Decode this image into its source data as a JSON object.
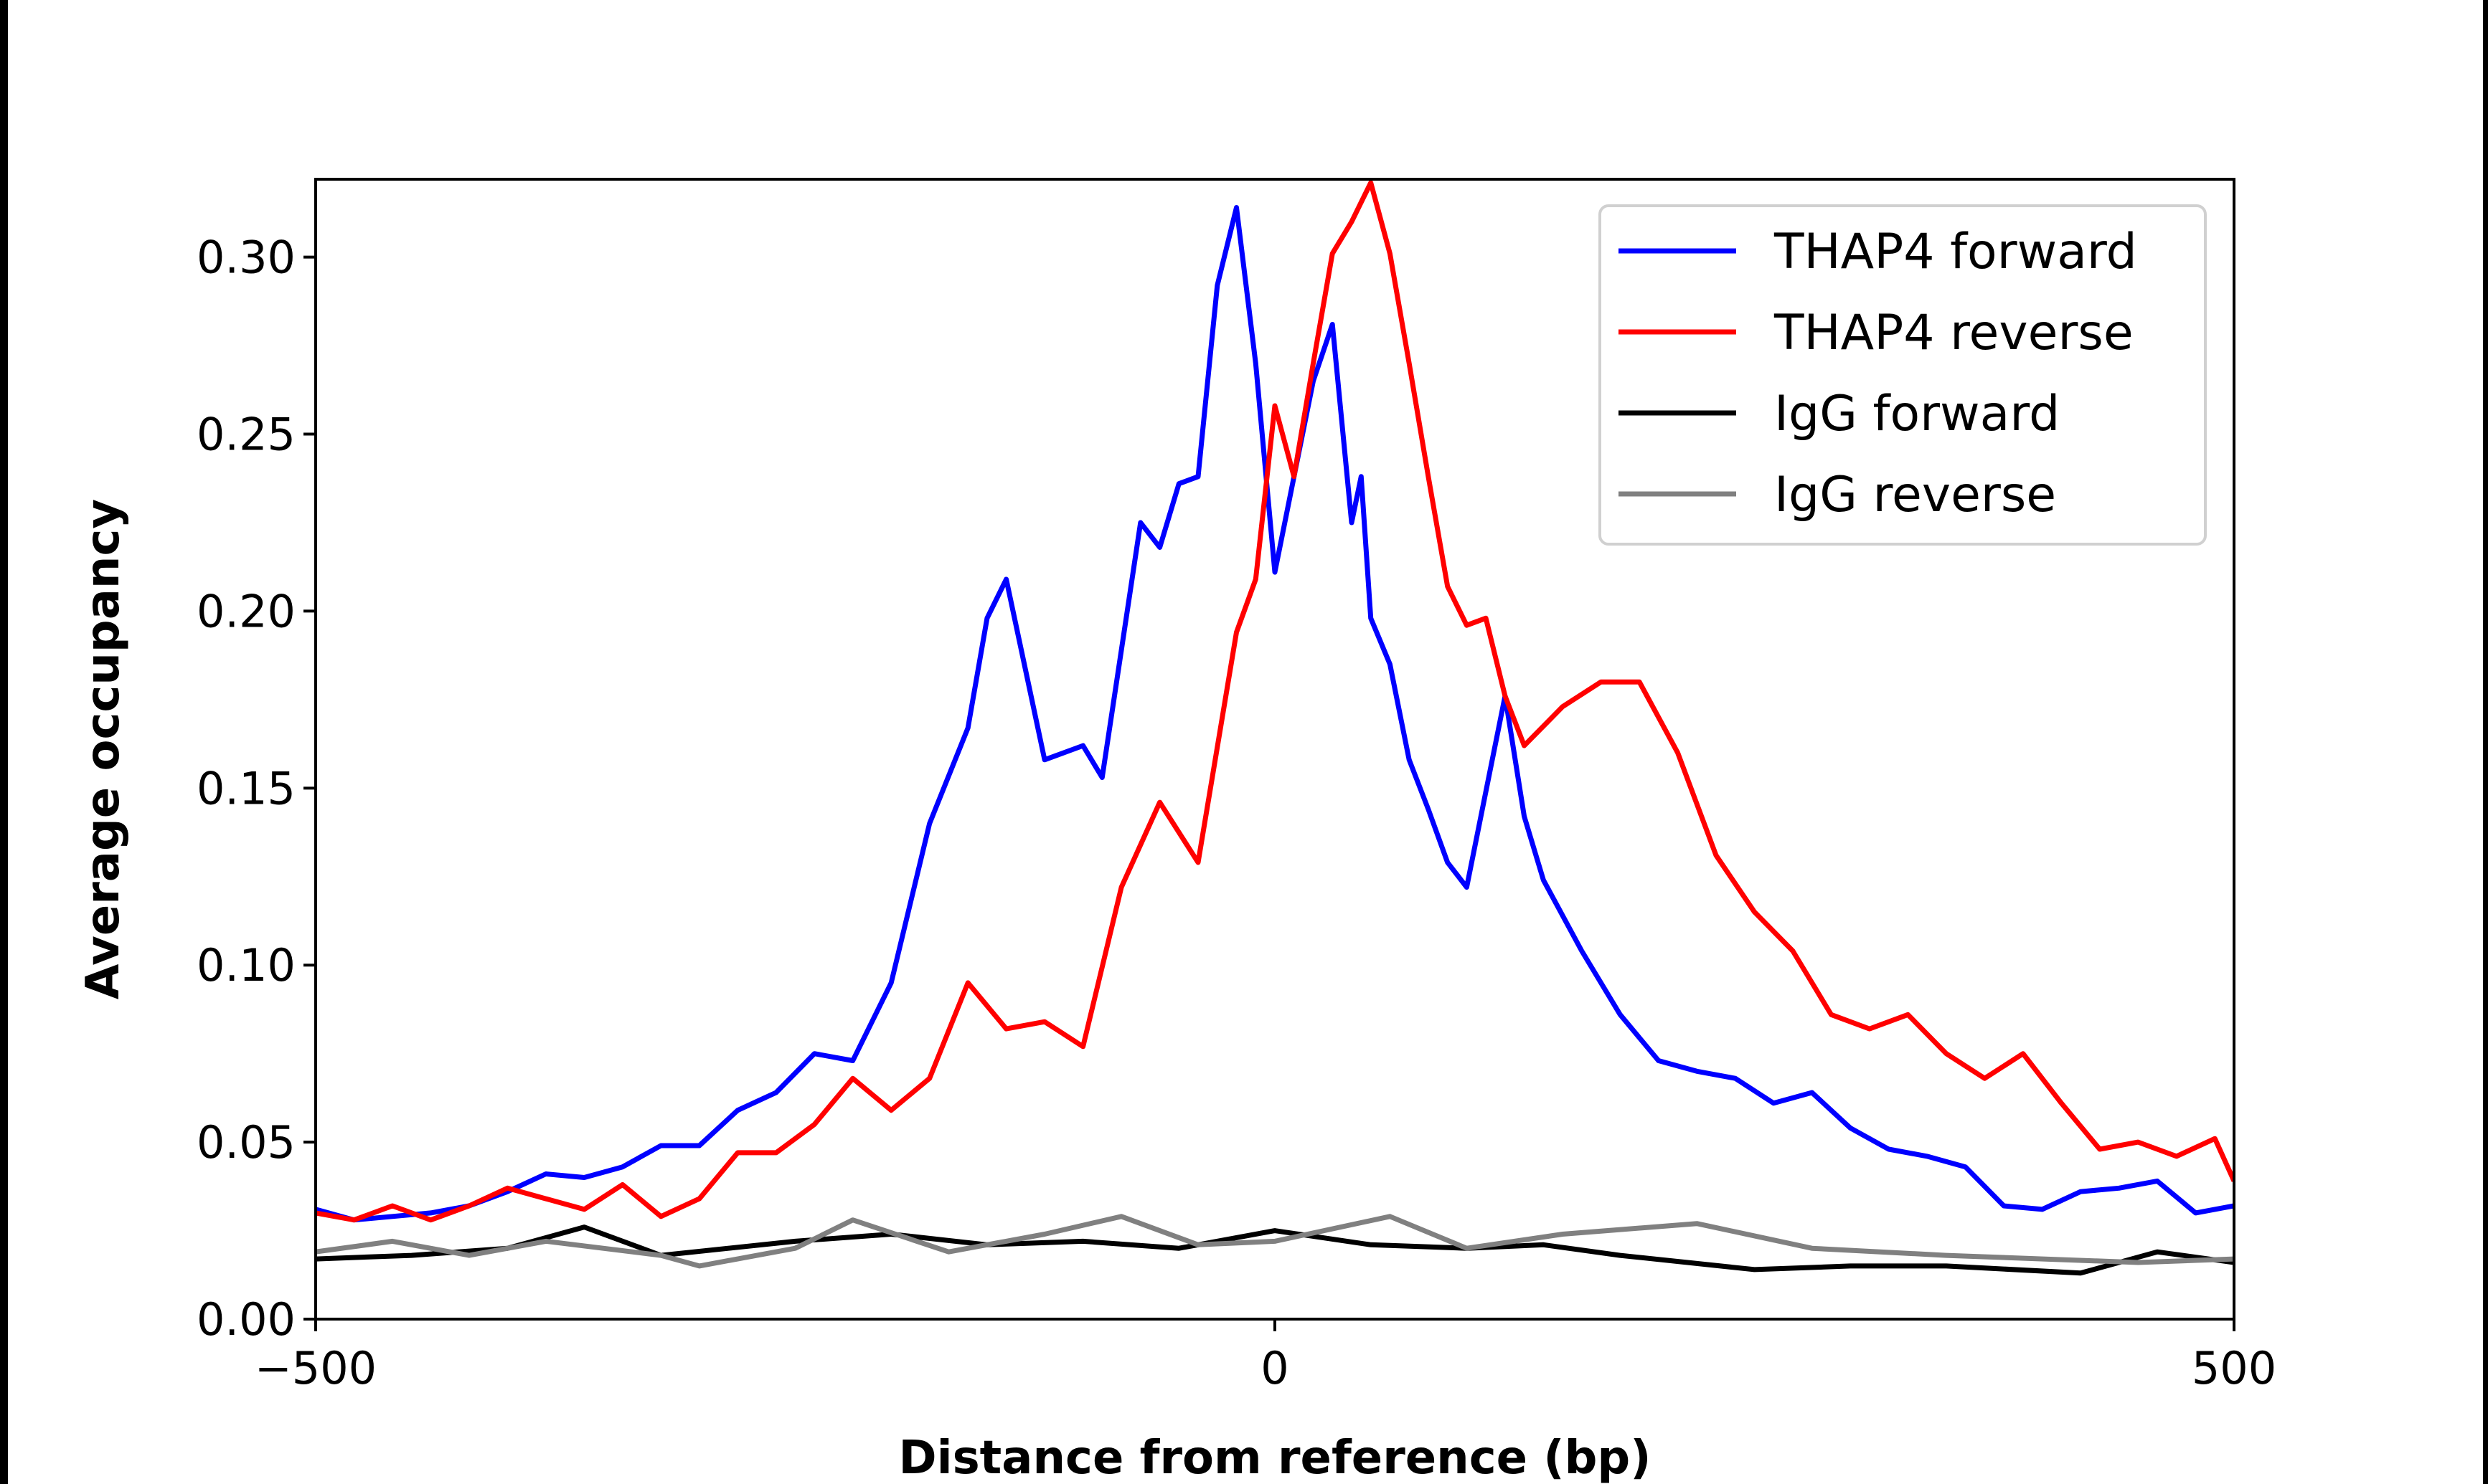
{
  "chart_data": {
    "type": "line",
    "title": "",
    "xlabel": "Distance from reference (bp)",
    "ylabel": "Average occupancy",
    "xlim": [
      -500,
      500
    ],
    "ylim": [
      0,
      0.322
    ],
    "xticks": [
      -500,
      0,
      500
    ],
    "xtick_labels": [
      "−500",
      "0",
      "500"
    ],
    "yticks": [
      0,
      0.05,
      0.1,
      0.15,
      0.2,
      0.25,
      0.3
    ],
    "ytick_labels": [
      "0.00",
      "0.05",
      "0.10",
      "0.15",
      "0.20",
      "0.25",
      "0.30"
    ],
    "grid": false,
    "legend_position": "top-right",
    "series": [
      {
        "name": "THAP4 forward",
        "color": "#0000ff",
        "x": [
          -500,
          -480,
          -460,
          -440,
          -420,
          -400,
          -380,
          -360,
          -340,
          -320,
          -300,
          -280,
          -260,
          -240,
          -220,
          -200,
          -180,
          -160,
          -150,
          -140,
          -120,
          -100,
          -90,
          -80,
          -70,
          -60,
          -50,
          -40,
          -30,
          -20,
          -10,
          0,
          10,
          20,
          30,
          40,
          45,
          50,
          60,
          70,
          80,
          90,
          100,
          110,
          120,
          130,
          140,
          160,
          180,
          200,
          220,
          240,
          260,
          280,
          300,
          320,
          340,
          360,
          380,
          400,
          420,
          440,
          460,
          480,
          500
        ],
        "y": [
          0.031,
          0.028,
          0.029,
          0.03,
          0.032,
          0.036,
          0.041,
          0.04,
          0.043,
          0.049,
          0.049,
          0.059,
          0.064,
          0.075,
          0.073,
          0.095,
          0.14,
          0.167,
          0.198,
          0.209,
          0.158,
          0.162,
          0.153,
          0.189,
          0.225,
          0.218,
          0.236,
          0.238,
          0.292,
          0.314,
          0.27,
          0.211,
          0.238,
          0.265,
          0.281,
          0.225,
          0.238,
          0.198,
          0.185,
          0.158,
          0.144,
          0.129,
          0.122,
          0.149,
          0.176,
          0.142,
          0.124,
          0.104,
          0.086,
          0.073,
          0.07,
          0.068,
          0.061,
          0.064,
          0.054,
          0.048,
          0.046,
          0.043,
          0.032,
          0.031,
          0.036,
          0.037,
          0.039,
          0.03,
          0.032
        ]
      },
      {
        "name": "THAP4 reverse",
        "color": "#ff0000",
        "x": [
          -500,
          -480,
          -460,
          -440,
          -420,
          -400,
          -380,
          -360,
          -340,
          -320,
          -300,
          -280,
          -260,
          -240,
          -220,
          -200,
          -180,
          -160,
          -140,
          -120,
          -100,
          -80,
          -60,
          -40,
          -20,
          -10,
          0,
          10,
          20,
          30,
          40,
          50,
          60,
          70,
          80,
          90,
          100,
          110,
          120,
          130,
          150,
          170,
          190,
          210,
          230,
          250,
          270,
          290,
          310,
          330,
          350,
          370,
          390,
          410,
          430,
          450,
          470,
          490,
          500
        ],
        "y": [
          0.03,
          0.028,
          0.032,
          0.028,
          0.032,
          0.037,
          0.034,
          0.031,
          0.038,
          0.029,
          0.034,
          0.047,
          0.047,
          0.055,
          0.068,
          0.059,
          0.068,
          0.095,
          0.082,
          0.084,
          0.077,
          0.122,
          0.146,
          0.129,
          0.194,
          0.209,
          0.258,
          0.238,
          0.27,
          0.301,
          0.31,
          0.321,
          0.301,
          0.27,
          0.238,
          0.207,
          0.196,
          0.198,
          0.176,
          0.162,
          0.173,
          0.18,
          0.18,
          0.16,
          0.131,
          0.115,
          0.104,
          0.086,
          0.082,
          0.086,
          0.075,
          0.068,
          0.075,
          0.061,
          0.048,
          0.05,
          0.046,
          0.051,
          0.039
        ]
      },
      {
        "name": "IgG forward",
        "color": "#000000",
        "x": [
          -500,
          -450,
          -400,
          -360,
          -320,
          -250,
          -200,
          -150,
          -100,
          -50,
          0,
          50,
          100,
          140,
          180,
          250,
          300,
          350,
          420,
          460,
          500
        ],
        "y": [
          0.017,
          0.018,
          0.02,
          0.026,
          0.018,
          0.022,
          0.024,
          0.021,
          0.022,
          0.02,
          0.025,
          0.021,
          0.02,
          0.021,
          0.018,
          0.014,
          0.015,
          0.015,
          0.013,
          0.019,
          0.016
        ]
      },
      {
        "name": "IgG reverse",
        "color": "#808080",
        "x": [
          -500,
          -460,
          -420,
          -380,
          -320,
          -300,
          -250,
          -220,
          -170,
          -120,
          -80,
          -40,
          0,
          60,
          100,
          150,
          220,
          280,
          350,
          450,
          500
        ],
        "y": [
          0.019,
          0.022,
          0.018,
          0.022,
          0.018,
          0.015,
          0.02,
          0.028,
          0.019,
          0.024,
          0.029,
          0.021,
          0.022,
          0.029,
          0.02,
          0.024,
          0.027,
          0.02,
          0.018,
          0.016,
          0.017
        ]
      }
    ]
  }
}
